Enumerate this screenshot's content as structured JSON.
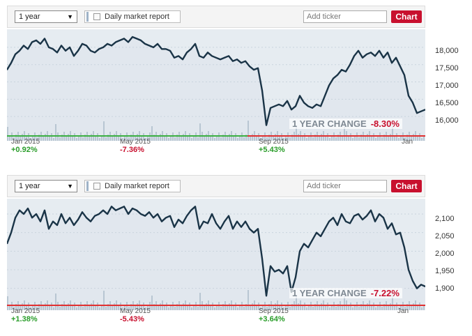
{
  "colors": {
    "accent": "#c8102e",
    "up": "#2a9d2a",
    "down": "#c8102e",
    "line": "#1a3447",
    "baseline_up": "#3cb043",
    "baseline_down": "#e03030"
  },
  "widgets": [
    {
      "id": "dow",
      "toolbar": {
        "range": "1 year",
        "report_label": "Daily market report",
        "ticker_placeholder": "Add ticker",
        "chart_button": "Chart"
      },
      "change_label": "1 YEAR CHANGE",
      "change_value": "-8.30%",
      "axis": [
        {
          "label": "Jan 2015",
          "pct": "+0.92%",
          "trend": "up"
        },
        {
          "label": "May 2015",
          "pct": "-7.36%",
          "trend": "down"
        },
        {
          "label": "Sep 2015",
          "pct": "+5.43%",
          "trend": "up"
        },
        {
          "label": "Jan",
          "pct": "",
          "trend": "up"
        }
      ],
      "y_ticks": [
        "18,000",
        "17,500",
        "17,000",
        "16,500",
        "16,000"
      ],
      "chart_data": {
        "type": "line",
        "title": "",
        "xlabel": "",
        "ylabel": "",
        "ylim": [
          15500,
          18400
        ],
        "y_ticks": [
          16000,
          16500,
          17000,
          17500,
          18000
        ],
        "x_ticks": [
          "Jan 2015",
          "May 2015",
          "Sep 2015",
          "Jan"
        ],
        "x_range": [
          0,
          100
        ],
        "series": [
          {
            "x": [
              0,
              1,
              2,
              3,
              4,
              5,
              6,
              7,
              8,
              9,
              10,
              11,
              12,
              13,
              14,
              15,
              16,
              17,
              18,
              19,
              20,
              21,
              22,
              23,
              24,
              25,
              26,
              27,
              28,
              29,
              30,
              31,
              32,
              33,
              34,
              35,
              36,
              37,
              38,
              39,
              40,
              41,
              42,
              43,
              44,
              45,
              46,
              47,
              48,
              49,
              50,
              51,
              52,
              53,
              54,
              55,
              56,
              57,
              58,
              59,
              60,
              61,
              62,
              63,
              64,
              65,
              66,
              67,
              68,
              69,
              70,
              71,
              72,
              73,
              74,
              75,
              76,
              77,
              78,
              79,
              80,
              81,
              82,
              83,
              84,
              85,
              86,
              87,
              88,
              89,
              90,
              91,
              92,
              93,
              94,
              95,
              96,
              97,
              98,
              99,
              100
            ],
            "values": [
              17350,
              17550,
              17800,
              17900,
              18050,
              17950,
              18150,
              18200,
              18100,
              18250,
              18000,
              17950,
              17850,
              18050,
              17900,
              18000,
              17750,
              17900,
              18100,
              18050,
              17900,
              17850,
              17950,
              18000,
              18100,
              18050,
              18150,
              18200,
              18250,
              18150,
              18300,
              18250,
              18200,
              18100,
              18050,
              18000,
              18100,
              17950,
              17950,
              17900,
              17700,
              17750,
              17650,
              17850,
              17950,
              18100,
              17750,
              17700,
              17850,
              17750,
              17700,
              17650,
              17700,
              17750,
              17600,
              17650,
              17550,
              17600,
              17450,
              17350,
              17400,
              16750,
              15750,
              16250,
              16300,
              16350,
              16300,
              16450,
              16200,
              16300,
              16600,
              16400,
              16300,
              16250,
              16350,
              16300,
              16600,
              16900,
              17100,
              17200,
              17350,
              17300,
              17500,
              17750,
              17900,
              17700,
              17800,
              17850,
              17750,
              17900,
              17700,
              17850,
              17550,
              17700,
              17450,
              17200,
              16600,
              16400,
              16100,
              16150,
              16200
            ],
            "name": ""
          }
        ]
      }
    },
    {
      "id": "sp500",
      "toolbar": {
        "range": "1 year",
        "report_label": "Daily market report",
        "ticker_placeholder": "Add ticker",
        "chart_button": "Chart"
      },
      "change_label": "1 YEAR CHANGE",
      "change_value": "-7.22%",
      "axis": [
        {
          "label": "Jan 2015",
          "pct": "+1.38%",
          "trend": "up"
        },
        {
          "label": "May 2015",
          "pct": "-5.43%",
          "trend": "down"
        },
        {
          "label": "Sep 2015",
          "pct": "+3.64%",
          "trend": "up"
        },
        {
          "label": "Jan",
          "pct": "",
          "trend": "up"
        }
      ],
      "y_ticks": [
        "2,100",
        "2,050",
        "2,000",
        "1,950",
        "1,900"
      ],
      "chart_data": {
        "type": "line",
        "title": "",
        "xlabel": "",
        "ylabel": "",
        "ylim": [
          1860,
          2130
        ],
        "y_ticks": [
          1900,
          1950,
          2000,
          2050,
          2100
        ],
        "x_ticks": [
          "Jan 2015",
          "May 2015",
          "Sep 2015",
          "Jan"
        ],
        "x_range": [
          0,
          100
        ],
        "series": [
          {
            "x": [
              0,
              1,
              2,
              3,
              4,
              5,
              6,
              7,
              8,
              9,
              10,
              11,
              12,
              13,
              14,
              15,
              16,
              17,
              18,
              19,
              20,
              21,
              22,
              23,
              24,
              25,
              26,
              27,
              28,
              29,
              30,
              31,
              32,
              33,
              34,
              35,
              36,
              37,
              38,
              39,
              40,
              41,
              42,
              43,
              44,
              45,
              46,
              47,
              48,
              49,
              50,
              51,
              52,
              53,
              54,
              55,
              56,
              57,
              58,
              59,
              60,
              61,
              62,
              63,
              64,
              65,
              66,
              67,
              68,
              69,
              70,
              71,
              72,
              73,
              74,
              75,
              76,
              77,
              78,
              79,
              80,
              81,
              82,
              83,
              84,
              85,
              86,
              87,
              88,
              89,
              90,
              91,
              92,
              93,
              94,
              95,
              96,
              97,
              98,
              99,
              100
            ],
            "values": [
              2020,
              2050,
              2090,
              2110,
              2100,
              2115,
              2090,
              2100,
              2080,
              2110,
              2060,
              2080,
              2070,
              2100,
              2075,
              2090,
              2070,
              2085,
              2105,
              2090,
              2080,
              2095,
              2100,
              2110,
              2100,
              2120,
              2110,
              2115,
              2120,
              2100,
              2115,
              2110,
              2100,
              2095,
              2105,
              2090,
              2100,
              2080,
              2090,
              2095,
              2065,
              2085,
              2075,
              2095,
              2110,
              2120,
              2060,
              2080,
              2075,
              2100,
              2075,
              2060,
              2080,
              2095,
              2060,
              2080,
              2065,
              2080,
              2060,
              2050,
              2060,
              1980,
              1880,
              1960,
              1945,
              1950,
              1940,
              1960,
              1890,
              1930,
              2000,
              2020,
              2010,
              2030,
              2050,
              2040,
              2060,
              2080,
              2090,
              2070,
              2100,
              2080,
              2075,
              2095,
              2100,
              2085,
              2095,
              2110,
              2080,
              2100,
              2090,
              2060,
              2075,
              2045,
              2050,
              2010,
              1950,
              1920,
              1900,
              1910,
              1905
            ],
            "name": ""
          }
        ]
      }
    }
  ]
}
